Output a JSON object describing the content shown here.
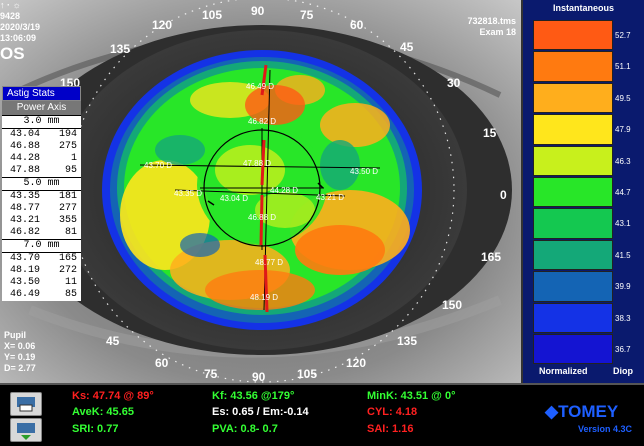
{
  "header": {
    "top_icons": "↑ · ☼",
    "patient_id": "9428",
    "date": "2020/3/19",
    "time": "13:06:09",
    "eye": "OS",
    "file": "732818.tms",
    "exam": "Exam 18"
  },
  "astig_stats": {
    "title": "Astig Stats",
    "columns": "Power  Axis",
    "groups": [
      {
        "label": "3.0 mm",
        "rows": [
          [
            "43.04",
            "194"
          ],
          [
            "46.88",
            "275"
          ],
          [
            "44.28",
            "1"
          ],
          [
            "47.88",
            "95"
          ]
        ]
      },
      {
        "label": "5.0 mm",
        "rows": [
          [
            "43.35",
            "181"
          ],
          [
            "48.77",
            "277"
          ],
          [
            "43.21",
            "355"
          ],
          [
            "46.82",
            "81"
          ]
        ]
      },
      {
        "label": "7.0 mm",
        "rows": [
          [
            "43.70",
            "165"
          ],
          [
            "48.19",
            "272"
          ],
          [
            "43.50",
            "11"
          ],
          [
            "46.49",
            "85"
          ]
        ]
      }
    ]
  },
  "pupil": {
    "title": "Pupil",
    "x": "X= 0.06",
    "y": "Y= 0.19",
    "d": "D= 2.77"
  },
  "legend": {
    "title": "Instantaneous",
    "footer_left": "Normalized",
    "footer_right": "Diop",
    "steps": [
      {
        "value": "52.7",
        "color": "#ff5a14"
      },
      {
        "value": "51.1",
        "color": "#ff7a10"
      },
      {
        "value": "49.5",
        "color": "#ffae1c"
      },
      {
        "value": "47.9",
        "color": "#ffe61c"
      },
      {
        "value": "46.3",
        "color": "#c8f01c"
      },
      {
        "value": "44.7",
        "color": "#28e628"
      },
      {
        "value": "43.1",
        "color": "#14c850"
      },
      {
        "value": "41.5",
        "color": "#14a878"
      },
      {
        "value": "39.9",
        "color": "#1464b4"
      },
      {
        "value": "38.3",
        "color": "#1432e6"
      },
      {
        "value": "36.7",
        "color": "#1414d2"
      }
    ]
  },
  "axis_angles": [
    {
      "text": "90",
      "id": "90-top"
    },
    {
      "text": "105",
      "id": "105-top"
    },
    {
      "text": "75",
      "id": "75-top"
    },
    {
      "text": "120",
      "id": "120-top"
    },
    {
      "text": "60",
      "id": "60-top"
    },
    {
      "text": "135",
      "id": "135-top"
    },
    {
      "text": "45",
      "id": "45-top"
    },
    {
      "text": "150",
      "id": "150-top"
    },
    {
      "text": "30",
      "id": "30-top"
    },
    {
      "text": "15",
      "id": "15-right"
    },
    {
      "text": "0",
      "id": "0-right"
    },
    {
      "text": "165",
      "id": "165-right"
    },
    {
      "text": "150",
      "id": "150-right"
    },
    {
      "text": "135",
      "id": "135-right"
    },
    {
      "text": "120",
      "id": "120-bottom"
    },
    {
      "text": "105",
      "id": "105-bottom"
    },
    {
      "text": "90",
      "id": "90-bottom"
    },
    {
      "text": "75",
      "id": "75-bottom"
    },
    {
      "text": "60",
      "id": "60-bottom"
    },
    {
      "text": "45",
      "id": "45-bottom"
    }
  ],
  "map_labels": [
    "46.49 D",
    "46.82 D",
    "47.88 D",
    "43.70 D",
    "43.35 D",
    "43.04 D",
    "44.28 D",
    "43.21 D",
    "43.50 D",
    "46.88 D",
    "48.77 D",
    "48.19 D"
  ],
  "indices": {
    "ks": "Ks: 47.74 @ 89°",
    "kf": "Kf: 43.56 @179°",
    "mink": "MinK: 43.51 @  0°",
    "avek": "AveK: 45.65",
    "es": "Es: 0.65 / Em:-0.14",
    "cyl": "CYL:  4.18",
    "sri": "SRI: 0.77",
    "pva": "PVA:   0.8-  0.7",
    "sai": "SAI: 1.16"
  },
  "brand": {
    "logo": "TOMEY",
    "version": "Version 4.3C"
  }
}
